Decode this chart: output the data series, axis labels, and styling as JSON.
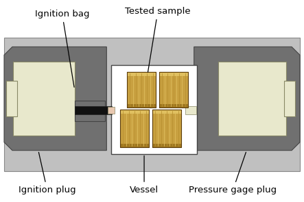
{
  "bg_color": "#ffffff",
  "gray_light": "#c0c0c0",
  "gray_dark": "#707070",
  "gray_mid": "#909090",
  "cream": "#e8e8cc",
  "cream_dark": "#d8d8b8",
  "wood_main": "#c8a040",
  "wood_light": "#e0c060",
  "wood_dark": "#a07820",
  "wood_stripe": "#b89030",
  "black": "#111111",
  "pink_tip": "#e8c8b0",
  "labels": {
    "ignition_bag": "Ignition bag",
    "tested_sample": "Tested sample",
    "ignition_plug": "Ignition plug",
    "vessel": "Vessel",
    "pressure_gage_plug": "Pressure gage plug"
  }
}
